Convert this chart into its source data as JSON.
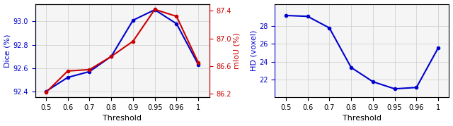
{
  "thresholds_labels": [
    "0.5",
    "0.6",
    "0.7",
    "0.8",
    "0.9",
    "0.95",
    "0.96",
    "1"
  ],
  "thresholds_pos": [
    0,
    1,
    2,
    3,
    4,
    5,
    6,
    7
  ],
  "dice": [
    92.4,
    92.52,
    92.57,
    92.7,
    93.01,
    93.1,
    92.98,
    92.63
  ],
  "miou": [
    86.22,
    86.53,
    86.55,
    86.74,
    86.96,
    87.42,
    87.32,
    86.65
  ],
  "hd": [
    29.2,
    29.1,
    27.8,
    23.35,
    21.75,
    20.95,
    21.1,
    25.55
  ],
  "dice_color": "#0000CC",
  "miou_color": "#CC0000",
  "hd_color": "#0000CC",
  "xlabel": "Threshold",
  "ylabel_left1": "Dice (%)",
  "ylabel_right1": "mIoU (%)",
  "ylabel_left2": "HD (voxel)",
  "dice_ylim": [
    92.35,
    93.15
  ],
  "miou_ylim": [
    86.15,
    87.5
  ],
  "hd_ylim": [
    20.0,
    30.5
  ],
  "dice_yticks": [
    92.4,
    92.6,
    92.8,
    93.0
  ],
  "miou_yticks": [
    86.2,
    86.6,
    87.0,
    87.4
  ],
  "hd_yticks": [
    22.0,
    24.0,
    26.0,
    28.0
  ],
  "bg_color": "#f5f5f5",
  "grid_color": "#cccccc"
}
